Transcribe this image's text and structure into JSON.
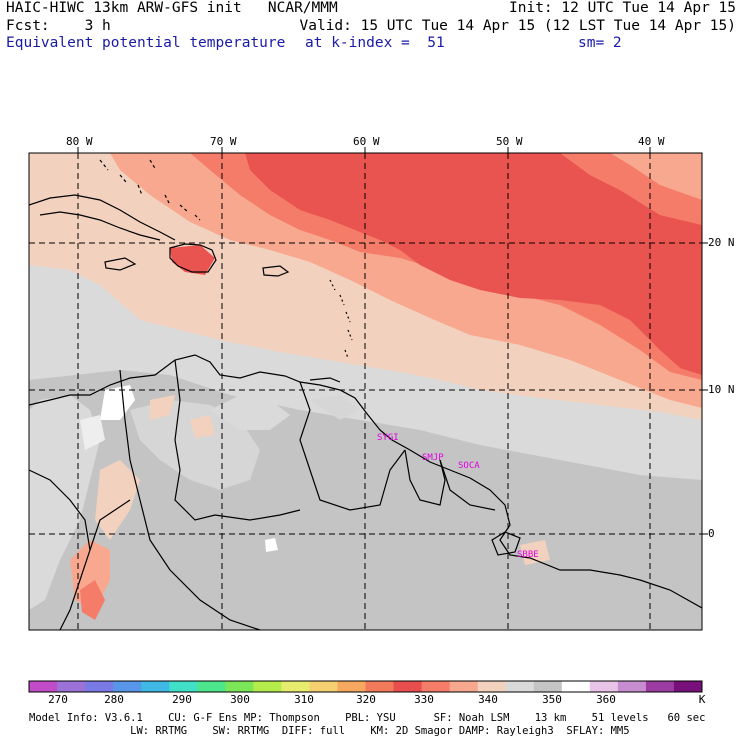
{
  "header": {
    "line1_left": "HAIC-HIWC 13km ARW-GFS init   NCAR/MMM",
    "line1_right": "Init: 12 UTC Tue 14 Apr 15",
    "line2_left": "Fcst:    3 h",
    "line2_right": "Valid: 15 UTC Tue 14 Apr 15 (12 LST Tue 14 Apr 15)",
    "field_name": "Equivalent potential temperature",
    "k_index": "at k-index =  51",
    "smoothing": "sm= 2"
  },
  "map": {
    "lon_labels": [
      "80 W",
      "70 W",
      "60 W",
      "50 W",
      "40 W"
    ],
    "lat_labels": [
      "20 N",
      "10 N",
      "0"
    ],
    "station_labels": [
      "SYGI",
      "SMJP",
      "SOCA",
      "SBBE"
    ],
    "station_color": "#e000e0"
  },
  "colorbar": {
    "units": "K",
    "tick_labels": [
      "270",
      "280",
      "290",
      "300",
      "310",
      "320",
      "330",
      "340",
      "350",
      "360"
    ],
    "colors": [
      "#c04cc8",
      "#9d72d8",
      "#7a7ae6",
      "#5896ea",
      "#3fb8e6",
      "#40e0c8",
      "#4ce68c",
      "#7ae658",
      "#b4ec4c",
      "#e6ec6e",
      "#f6d070",
      "#f6a860",
      "#f07a5a",
      "#e84e4e",
      "#f47c68",
      "#f8a88e",
      "#f2d2be",
      "#dadada",
      "#c4c4c4",
      "#ffffff",
      "#e8c4e8",
      "#c88cd0",
      "#9c3ca0",
      "#78107c"
    ]
  },
  "footer": {
    "line1": "Model Info: V3.6.1    CU: G-F Ens MP: Thompson    PBL: YSU      SF: Noah LSM    13 km    51 levels   60 sec",
    "line2": "                LW: RRTMG    SW: RRTMG  DIFF: full    KM: 2D Smagor DAMP: Rayleigh3  SFLAY: MM5"
  }
}
